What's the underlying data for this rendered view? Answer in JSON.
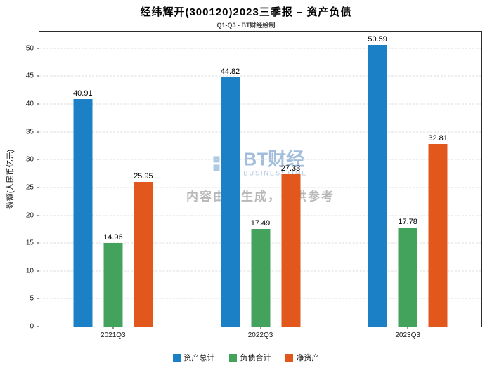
{
  "header": {
    "title": "经纬辉开(300120)2023三季报 – 资产负债",
    "subtitle": "Q1-Q3 - BT财经绘制"
  },
  "chart_data": {
    "type": "bar",
    "categories": [
      "2021Q3",
      "2022Q3",
      "2023Q3"
    ],
    "series": [
      {
        "name": "资产总计",
        "color": "#1c80c6",
        "values": [
          40.91,
          44.82,
          50.59
        ]
      },
      {
        "name": "负债合计",
        "color": "#43a35c",
        "values": [
          14.96,
          17.49,
          17.78
        ]
      },
      {
        "name": "净资产",
        "color": "#e2571c",
        "values": [
          25.95,
          27.33,
          32.81
        ]
      }
    ],
    "title": "经纬辉开(300120)2023三季报 – 资产负债",
    "xlabel": "",
    "ylabel": "数额(人民币亿元)",
    "yticks": [
      0,
      5,
      10,
      15,
      20,
      25,
      30,
      35,
      40,
      45,
      50
    ],
    "ylim": [
      0,
      53
    ],
    "grid": true,
    "grid_style": "dashed",
    "legend_position": "bottom"
  },
  "watermark": {
    "brand": "BT财经",
    "brand_sub": "BUSINESSTIME",
    "notice": "内容由AI生成，仅供参考"
  }
}
